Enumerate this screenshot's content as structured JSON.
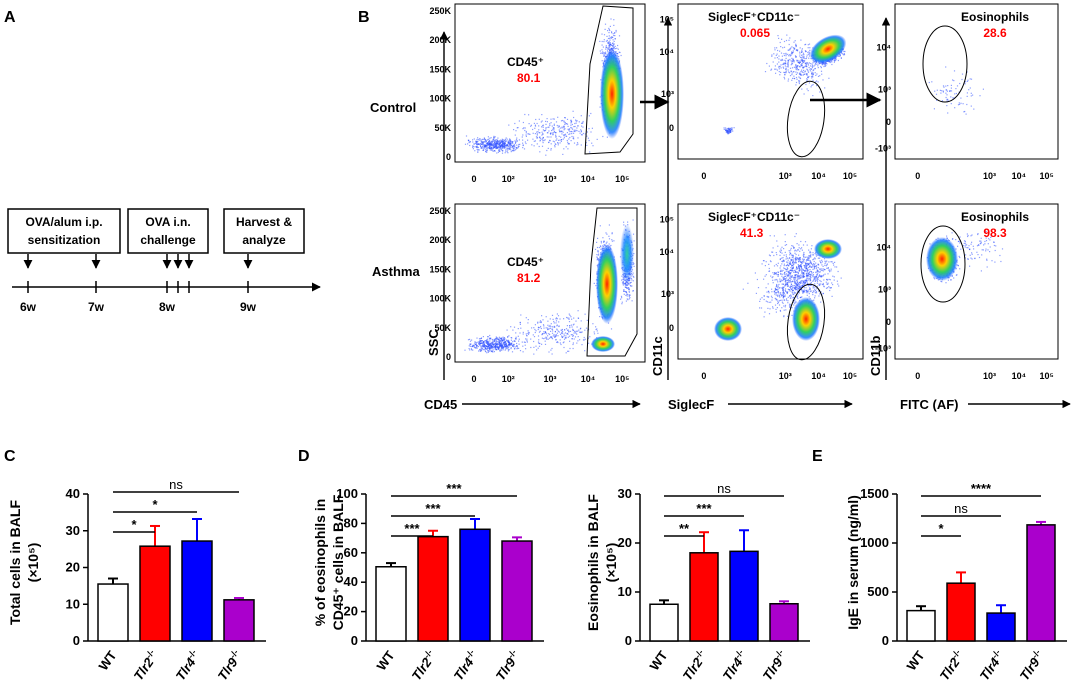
{
  "colors": {
    "wt": "#ffffff",
    "tlr2": "#ff0000",
    "tlr4": "#0000ff",
    "tlr9": "#aa00cc",
    "gate_value": "#ff0000",
    "axis": "#000000"
  },
  "panel_labels": {
    "a": "A",
    "b": "B",
    "c": "C",
    "d": "D",
    "e": "E"
  },
  "timeline": {
    "boxes": [
      {
        "lines": [
          "OVA/alum i.p.",
          "sensitization"
        ]
      },
      {
        "lines": [
          "OVA i.n.",
          "challenge"
        ]
      },
      {
        "lines": [
          "Harvest &",
          "analyze"
        ]
      }
    ],
    "ticks": [
      "6w",
      "7w",
      "8w",
      "9w"
    ]
  },
  "flow": {
    "row_labels": [
      "Control",
      "Asthma"
    ],
    "x_axes": [
      "CD45",
      "SiglecF",
      "FITC (AF)"
    ],
    "y_axes": [
      "SSC",
      "CD11c",
      "CD11b"
    ],
    "ssc_ticks": [
      "250K",
      "200K",
      "150K",
      "100K",
      "50K",
      "0"
    ],
    "gates": {
      "control": [
        {
          "name": "CD45⁺",
          "value": "80.1"
        },
        {
          "name": "SiglecF⁺CD11c⁻",
          "value": "0.065"
        },
        {
          "name": "Eosinophils",
          "value": "28.6"
        }
      ],
      "asthma": [
        {
          "name": "CD45⁺",
          "value": "81.2"
        },
        {
          "name": "SiglecF⁺CD11c⁻",
          "value": "41.3"
        },
        {
          "name": "Eosinophils",
          "value": "98.3"
        }
      ]
    }
  },
  "chart_data": [
    {
      "panel": "C",
      "type": "bar",
      "categories": [
        "WT",
        "Tlr2-/-",
        "Tlr4-/-",
        "Tlr9-/-"
      ],
      "values": [
        15.5,
        25.8,
        27.2,
        11.2
      ],
      "errors": [
        1.5,
        5.5,
        6,
        0.5
      ],
      "ylabel": [
        "Total cells in BALF",
        "(×10⁵)"
      ],
      "ylim": [
        0,
        40
      ],
      "yticks": [
        "0",
        "10",
        "20",
        "30",
        "40"
      ],
      "significance": [
        {
          "from": 0,
          "to": 1,
          "label": "*"
        },
        {
          "from": 0,
          "to": 2,
          "label": "*"
        },
        {
          "from": 0,
          "to": 3,
          "label": "ns"
        }
      ]
    },
    {
      "panel": "D",
      "type": "bar",
      "categories": [
        "WT",
        "Tlr2-/-",
        "Tlr4-/-",
        "Tlr9-/-"
      ],
      "values": [
        50.5,
        71,
        76,
        68
      ],
      "errors": [
        2.5,
        4,
        7,
        2.5
      ],
      "ylabel": [
        "% of eosinophils in",
        "CD45⁺ cells in BALF"
      ],
      "ylim": [
        0,
        100
      ],
      "yticks": [
        "0",
        "20",
        "40",
        "60",
        "80",
        "100"
      ],
      "significance": [
        {
          "from": 0,
          "to": 1,
          "label": "***"
        },
        {
          "from": 0,
          "to": 2,
          "label": "***"
        },
        {
          "from": 0,
          "to": 3,
          "label": "***"
        }
      ]
    },
    {
      "panel": "D2",
      "type": "bar",
      "categories": [
        "WT",
        "Tlr2-/-",
        "Tlr4-/-",
        "Tlr9-/-"
      ],
      "values": [
        7.5,
        18,
        18.3,
        7.6
      ],
      "errors": [
        0.8,
        4.2,
        4.3,
        0.5
      ],
      "ylabel": [
        "Eosinophils in BALF",
        "(×10⁵)"
      ],
      "ylim": [
        0,
        30
      ],
      "yticks": [
        "0",
        "10",
        "20",
        "30"
      ],
      "significance": [
        {
          "from": 0,
          "to": 1,
          "label": "**"
        },
        {
          "from": 0,
          "to": 2,
          "label": "***"
        },
        {
          "from": 0,
          "to": 3,
          "label": "ns"
        }
      ]
    },
    {
      "panel": "E",
      "type": "bar",
      "categories": [
        "WT",
        "Tlr2-/-",
        "Tlr4-/-",
        "Tlr9-/-"
      ],
      "values": [
        310,
        590,
        285,
        1185
      ],
      "errors": [
        45,
        110,
        80,
        30
      ],
      "ylabel": [
        "IgE in serum (ng/ml)"
      ],
      "ylim": [
        0,
        1500
      ],
      "yticks": [
        "0",
        "500",
        "1000",
        "1500"
      ],
      "significance": [
        {
          "from": 0,
          "to": 1,
          "label": "*"
        },
        {
          "from": 0,
          "to": 2,
          "label": "ns"
        },
        {
          "from": 0,
          "to": 3,
          "label": "****"
        }
      ]
    }
  ]
}
